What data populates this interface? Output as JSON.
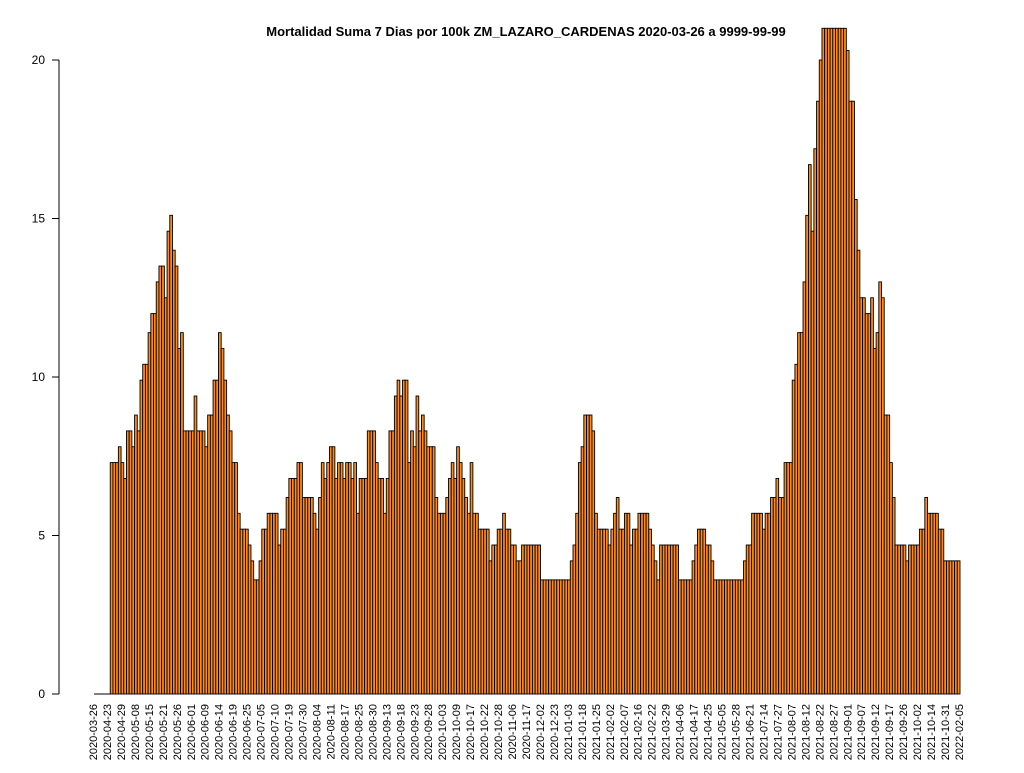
{
  "chart_data": {
    "type": "bar",
    "title": "Mortalidad Suma 7 Dias por 100k ZM_LAZARO_CARDENAS 2020-03-26 a 9999-99-99",
    "xlabel": "",
    "ylabel": "",
    "ylim": [
      0,
      20.4
    ],
    "yticks": [
      0,
      5,
      10,
      15,
      20
    ],
    "grid": false,
    "legend": "none",
    "bar_fill": "#FF8C1A",
    "bar_stroke": "#000000",
    "x_tick_labels": [
      "2020-03-26",
      "2020-04-23",
      "2020-04-29",
      "2020-05-08",
      "2020-05-15",
      "2020-05-21",
      "2020-05-26",
      "2020-06-01",
      "2020-06-09",
      "2020-06-14",
      "2020-06-19",
      "2020-06-25",
      "2020-07-05",
      "2020-07-10",
      "2020-07-19",
      "2020-07-30",
      "2020-08-04",
      "2020-08-11",
      "2020-08-17",
      "2020-08-25",
      "2020-08-30",
      "2020-09-13",
      "2020-09-18",
      "2020-09-23",
      "2020-09-28",
      "2020-10-03",
      "2020-10-09",
      "2020-10-17",
      "2020-10-22",
      "2020-10-28",
      "2020-11-06",
      "2020-11-17",
      "2020-12-02",
      "2020-12-23",
      "2021-01-03",
      "2021-01-18",
      "2021-01-25",
      "2021-02-02",
      "2021-02-07",
      "2021-02-16",
      "2021-02-22",
      "2021-03-29",
      "2021-04-06",
      "2021-04-17",
      "2021-04-25",
      "2021-05-05",
      "2021-05-28",
      "2021-06-21",
      "2021-07-14",
      "2021-07-27",
      "2021-08-07",
      "2021-08-12",
      "2021-08-22",
      "2021-08-27",
      "2021-09-01",
      "2021-09-07",
      "2021-09-12",
      "2021-09-17",
      "2021-09-26",
      "2021-10-02",
      "2021-10-14",
      "2021-10-31",
      "2022-02-05"
    ],
    "values": [
      0,
      0,
      0,
      0,
      0,
      0,
      7.3,
      7.3,
      7.3,
      7.8,
      7.3,
      6.8,
      8.3,
      8.3,
      7.8,
      8.8,
      8.3,
      9.9,
      10.4,
      10.4,
      11.4,
      12.0,
      12.0,
      13.0,
      13.5,
      13.5,
      12.5,
      14.6,
      15.1,
      14.0,
      13.5,
      10.9,
      11.4,
      8.3,
      8.3,
      8.3,
      8.3,
      9.4,
      8.3,
      8.3,
      8.3,
      7.8,
      8.8,
      8.8,
      9.9,
      9.9,
      11.4,
      10.9,
      9.9,
      8.8,
      8.3,
      7.3,
      7.3,
      5.7,
      5.2,
      5.2,
      5.2,
      4.7,
      4.2,
      3.6,
      3.6,
      4.2,
      5.2,
      5.2,
      5.7,
      5.7,
      5.7,
      5.7,
      4.7,
      5.2,
      5.2,
      6.2,
      6.8,
      6.8,
      6.8,
      7.3,
      7.3,
      6.2,
      6.2,
      6.2,
      6.2,
      5.7,
      5.2,
      6.2,
      7.3,
      6.8,
      7.3,
      7.8,
      7.8,
      6.8,
      7.3,
      7.3,
      6.8,
      7.3,
      7.3,
      6.8,
      7.3,
      5.7,
      6.8,
      6.8,
      6.8,
      8.3,
      8.3,
      8.3,
      7.3,
      6.8,
      6.8,
      5.7,
      6.8,
      8.3,
      8.3,
      9.4,
      9.9,
      9.4,
      9.9,
      9.9,
      7.3,
      8.3,
      7.8,
      9.4,
      8.3,
      8.8,
      8.3,
      7.8,
      7.8,
      7.8,
      6.2,
      5.7,
      5.7,
      5.7,
      6.2,
      6.8,
      7.3,
      6.8,
      7.8,
      7.3,
      6.8,
      6.2,
      5.7,
      7.3,
      5.7,
      5.7,
      5.2,
      5.2,
      5.2,
      5.2,
      4.2,
      4.7,
      4.7,
      5.2,
      5.2,
      5.7,
      5.2,
      5.2,
      4.7,
      4.7,
      4.2,
      4.2,
      4.7,
      4.7,
      4.7,
      4.7,
      4.7,
      4.7,
      4.7,
      3.6,
      3.6,
      3.6,
      3.6,
      3.6,
      3.6,
      3.6,
      3.6,
      3.6,
      3.6,
      3.6,
      4.2,
      4.7,
      5.7,
      7.3,
      7.8,
      8.8,
      8.8,
      8.8,
      8.3,
      5.7,
      5.2,
      5.2,
      5.2,
      5.2,
      4.7,
      5.2,
      5.7,
      6.2,
      5.2,
      5.2,
      5.7,
      5.7,
      4.7,
      5.2,
      5.2,
      5.7,
      5.7,
      5.7,
      5.7,
      5.2,
      4.7,
      4.2,
      3.6,
      4.7,
      4.7,
      4.7,
      4.7,
      4.7,
      4.7,
      4.7,
      3.6,
      3.6,
      3.6,
      3.6,
      3.6,
      4.2,
      4.7,
      5.2,
      5.2,
      5.2,
      4.7,
      4.7,
      4.2,
      3.6,
      3.6,
      3.6,
      3.6,
      3.6,
      3.6,
      3.6,
      3.6,
      3.6,
      3.6,
      3.6,
      4.2,
      4.7,
      4.7,
      5.7,
      5.7,
      5.7,
      5.7,
      5.2,
      5.7,
      5.7,
      6.2,
      6.2,
      6.8,
      6.2,
      6.2,
      7.3,
      7.3,
      7.3,
      9.9,
      10.4,
      11.4,
      11.4,
      13.0,
      15.1,
      16.7,
      14.6,
      17.2,
      18.7,
      20.0,
      21.0,
      21.0,
      21.0,
      21.0,
      21.0,
      21.0,
      21.0,
      21.0,
      21.0,
      20.3,
      18.7,
      18.7,
      15.6,
      14.0,
      12.5,
      12.5,
      12.0,
      12.0,
      12.5,
      10.9,
      11.4,
      13.0,
      12.5,
      8.8,
      8.8,
      7.3,
      6.2,
      4.7,
      4.7,
      4.7,
      4.7,
      4.2,
      4.7,
      4.7,
      4.7,
      4.7,
      5.2,
      5.2,
      6.2,
      5.7,
      5.7,
      5.7,
      5.7,
      5.2,
      5.2,
      4.2,
      4.2,
      4.2,
      4.2,
      4.2,
      4.2
    ]
  }
}
